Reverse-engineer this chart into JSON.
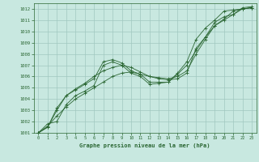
{
  "title": "Graphe pression niveau de la mer (hPa)",
  "bg_color": "#c8e8e0",
  "grid_color": "#a0c8c0",
  "line_color": "#2a6632",
  "ylim": [
    1001,
    1012.5
  ],
  "xlim": [
    -0.5,
    23.5
  ],
  "yticks": [
    1001,
    1002,
    1003,
    1004,
    1005,
    1006,
    1007,
    1008,
    1009,
    1010,
    1011,
    1012
  ],
  "xticks": [
    0,
    1,
    2,
    3,
    4,
    5,
    6,
    7,
    8,
    9,
    10,
    11,
    12,
    13,
    14,
    15,
    16,
    17,
    18,
    19,
    20,
    21,
    22,
    23
  ],
  "series": [
    {
      "x": [
        0,
        1,
        2,
        3,
        4,
        5,
        6,
        7,
        8,
        9,
        10,
        11,
        12,
        13,
        14,
        15,
        16,
        17,
        18,
        19,
        20,
        21,
        22,
        23
      ],
      "y": [
        1001.0,
        1001.5,
        1003.2,
        1004.3,
        1004.8,
        1005.3,
        1005.8,
        1007.3,
        1007.5,
        1007.2,
        1006.5,
        1006.2,
        1005.5,
        1005.5,
        1005.5,
        1006.3,
        1007.3,
        1009.3,
        1010.3,
        1011.0,
        1011.8,
        1011.9,
        1012.0,
        1012.1
      ]
    },
    {
      "x": [
        0,
        1,
        2,
        3,
        4,
        5,
        6,
        7,
        8,
        9,
        10,
        11,
        12,
        13,
        14,
        15,
        16,
        17,
        18,
        19,
        20,
        21,
        22,
        23
      ],
      "y": [
        1001.0,
        1001.5,
        1003.0,
        1004.3,
        1004.9,
        1005.4,
        1006.0,
        1006.5,
        1006.8,
        1007.0,
        1006.8,
        1006.4,
        1006.0,
        1005.8,
        1005.7,
        1005.8,
        1006.3,
        1008.5,
        1009.5,
        1010.5,
        1011.1,
        1011.8,
        1012.0,
        1012.1
      ]
    },
    {
      "x": [
        0,
        1,
        2,
        3,
        4,
        5,
        6,
        7,
        8,
        9,
        10,
        11,
        12,
        13,
        14,
        15,
        16,
        17,
        18,
        19,
        20,
        21,
        22,
        23
      ],
      "y": [
        1001.0,
        1001.8,
        1002.0,
        1003.5,
        1004.3,
        1004.7,
        1005.2,
        1007.0,
        1007.3,
        1007.0,
        1006.3,
        1006.0,
        1005.3,
        1005.4,
        1005.5,
        1006.2,
        1007.0,
        1008.3,
        1009.5,
        1010.8,
        1011.3,
        1011.5,
        1012.1,
        1012.2
      ]
    },
    {
      "x": [
        0,
        1,
        2,
        3,
        4,
        5,
        6,
        7,
        8,
        9,
        10,
        11,
        12,
        13,
        14,
        15,
        16,
        17,
        18,
        19,
        20,
        21,
        22,
        23
      ],
      "y": [
        1001.0,
        1001.6,
        1002.5,
        1003.3,
        1004.0,
        1004.5,
        1005.0,
        1005.5,
        1006.0,
        1006.3,
        1006.4,
        1006.2,
        1006.0,
        1005.9,
        1005.8,
        1006.0,
        1006.5,
        1008.0,
        1009.3,
        1010.5,
        1011.0,
        1011.5,
        1012.0,
        1012.1
      ]
    }
  ]
}
